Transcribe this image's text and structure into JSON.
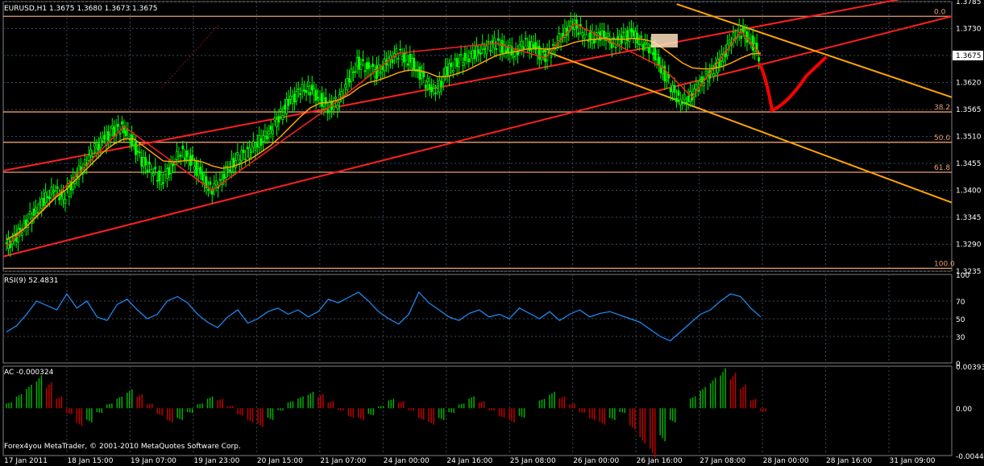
{
  "window": {
    "symbol_header": "EURUSD,H1  1.3675 1.3680 1.3673 1.3675",
    "copyright": "Forex4you MetaTrader, © 2001-2010 MetaQuotes Software Corp."
  },
  "colors": {
    "background": "#000000",
    "grid": "#3a4a5a",
    "bull_candle": "#00ff00",
    "channel_up": "#ff2020",
    "channel_down": "#ffa500",
    "ma_line": "#ffa500",
    "fib_line": "#e8a070",
    "rsi_line": "#1e90ff",
    "ac_up": "#00b000",
    "ac_down": "#c00000",
    "hand_drawn": "#ff0000"
  },
  "chart_data": [
    {
      "type": "candlestick",
      "panel": "price",
      "title": "EURUSD,H1",
      "ohlc_last": {
        "open": 1.3675,
        "high": 1.368,
        "low": 1.3673,
        "close": 1.3675
      },
      "y_ticks": [
        "1.3785",
        "1.3730",
        "1.3675",
        "1.3620",
        "1.3565",
        "1.3510",
        "1.3455",
        "1.3400",
        "1.3345",
        "1.3290",
        "1.3235"
      ],
      "ylim": [
        1.3235,
        1.3785
      ],
      "current_price": "1.3675",
      "x_labels": [
        "17 Jan 2011",
        "18 Jan 15:00",
        "19 Jan 07:00",
        "19 Jan 23:00",
        "20 Jan 15:00",
        "21 Jan 07:00",
        "24 Jan 00:00",
        "24 Jan 16:00",
        "25 Jan 08:00",
        "26 Jan 00:00",
        "26 Jan 16:00",
        "27 Jan 08:00",
        "28 Jan 00:00",
        "28 Jan 16:00",
        "31 Jan 09:00"
      ],
      "fibonacci": [
        {
          "label": "0.0",
          "price": 1.3755
        },
        {
          "label": "38.2",
          "price": 1.356
        },
        {
          "label": "50.0",
          "price": 1.3498
        },
        {
          "label": "61.8",
          "price": 1.3437
        },
        {
          "label": "100.0",
          "price": 1.3241
        }
      ],
      "close_path": [
        1.3285,
        1.33,
        1.333,
        1.3355,
        1.338,
        1.34,
        1.3385,
        1.342,
        1.345,
        1.348,
        1.35,
        1.352,
        1.353,
        1.35,
        1.346,
        1.344,
        1.342,
        1.345,
        1.348,
        1.346,
        1.343,
        1.34,
        1.342,
        1.345,
        1.347,
        1.348,
        1.35,
        1.352,
        1.355,
        1.358,
        1.36,
        1.361,
        1.359,
        1.357,
        1.358,
        1.362,
        1.366,
        1.365,
        1.364,
        1.366,
        1.368,
        1.367,
        1.365,
        1.362,
        1.36,
        1.364,
        1.366,
        1.367,
        1.368,
        1.369,
        1.37,
        1.369,
        1.368,
        1.37,
        1.369,
        1.367,
        1.369,
        1.372,
        1.374,
        1.372,
        1.371,
        1.372,
        1.37,
        1.371,
        1.372,
        1.37,
        1.369,
        1.365,
        1.361,
        1.358,
        1.359,
        1.362,
        1.364,
        1.366,
        1.37,
        1.3725,
        1.371,
        1.3675
      ],
      "ma_path": [
        1.33,
        1.331,
        1.3325,
        1.3345,
        1.3365,
        1.3385,
        1.34,
        1.342,
        1.344,
        1.346,
        1.348,
        1.3495,
        1.3505,
        1.3505,
        1.349,
        1.3475,
        1.346,
        1.3458,
        1.346,
        1.3462,
        1.3458,
        1.345,
        1.3445,
        1.3448,
        1.3455,
        1.3465,
        1.3478,
        1.3492,
        1.351,
        1.353,
        1.355,
        1.3568,
        1.3578,
        1.358,
        1.3585,
        1.3595,
        1.361,
        1.362,
        1.3625,
        1.3632,
        1.364,
        1.3645,
        1.3645,
        1.364,
        1.3632,
        1.3632,
        1.3638,
        1.3645,
        1.3655,
        1.3665,
        1.3675,
        1.368,
        1.3683,
        1.3688,
        1.369,
        1.3688,
        1.369,
        1.3695,
        1.3702,
        1.3706,
        1.3708,
        1.371,
        1.3708,
        1.3708,
        1.371,
        1.3708,
        1.3703,
        1.369,
        1.3675,
        1.366,
        1.365,
        1.3648,
        1.3648,
        1.3652,
        1.366,
        1.367,
        1.3678,
        1.368
      ],
      "channels": [
        {
          "name": "upper-red-channel-line",
          "from": [
            0,
            1.344
          ],
          "to": [
            1,
            1.381
          ]
        },
        {
          "name": "lower-red-channel-line",
          "from": [
            0,
            1.3265
          ],
          "to": [
            1,
            1.3755
          ]
        },
        {
          "name": "upper-orange-channel-line",
          "from": [
            0.71,
            1.378
          ],
          "to": [
            1,
            1.359
          ]
        },
        {
          "name": "lower-orange-channel-line",
          "from": [
            0.57,
            1.3685
          ],
          "to": [
            1,
            1.3375
          ]
        }
      ]
    },
    {
      "type": "line",
      "panel": "rsi",
      "title": "RSI(9) 52.4831",
      "y_ticks": [
        "100",
        "70",
        "50",
        "30",
        "0"
      ],
      "ylim": [
        0,
        100
      ],
      "series": [
        {
          "values": [
            35,
            42,
            55,
            70,
            65,
            60,
            78,
            62,
            70,
            52,
            48,
            66,
            72,
            60,
            50,
            55,
            70,
            75,
            68,
            55,
            46,
            40,
            52,
            60,
            45,
            50,
            58,
            62,
            55,
            60,
            52,
            58,
            72,
            68,
            74,
            80,
            70,
            58,
            50,
            44,
            55,
            80,
            68,
            60,
            52,
            48,
            56,
            60,
            52,
            55,
            50,
            62,
            56,
            50,
            58,
            48,
            55,
            60,
            52,
            56,
            58,
            54,
            50,
            46,
            38,
            30,
            25,
            35,
            45,
            55,
            60,
            70,
            78,
            75,
            62,
            52
          ]
        }
      ]
    },
    {
      "type": "bar",
      "panel": "ac",
      "title": "AC -0.000324",
      "y_ticks": [
        "0.00393",
        "0.00",
        "-0.00442"
      ],
      "ylim": [
        -0.00442,
        0.00393
      ],
      "series": [
        {
          "values": [
            0.0005,
            0.0012,
            0.002,
            0.0028,
            0.0022,
            0.001,
            -0.0005,
            -0.0015,
            -0.0012,
            -0.0004,
            0.0004,
            0.001,
            0.0016,
            0.0012,
            0.0004,
            -0.0006,
            -0.0012,
            -0.001,
            -0.0004,
            0.0004,
            0.001,
            0.0008,
            0.0002,
            -0.0006,
            -0.0012,
            -0.0016,
            -0.001,
            -0.0002,
            0.0006,
            0.001,
            0.0014,
            0.0012,
            0.0006,
            -0.0002,
            -0.0008,
            -0.001,
            -0.0006,
            0.0002,
            0.0008,
            0.0006,
            -0.0002,
            -0.001,
            -0.0014,
            -0.001,
            -0.0004,
            0.0004,
            0.001,
            0.0006,
            -0.0002,
            -0.0008,
            -0.0012,
            -0.0008,
            0.0,
            0.0008,
            0.0014,
            0.001,
            0.0004,
            -0.0004,
            -0.001,
            -0.0014,
            -0.001,
            -0.0004,
            -0.0018,
            -0.003,
            -0.0042,
            -0.0028,
            -0.0012,
            0.0,
            0.001,
            0.0018,
            0.0026,
            0.0034,
            0.003,
            0.002,
            0.0008,
            -0.0003
          ]
        }
      ]
    }
  ]
}
